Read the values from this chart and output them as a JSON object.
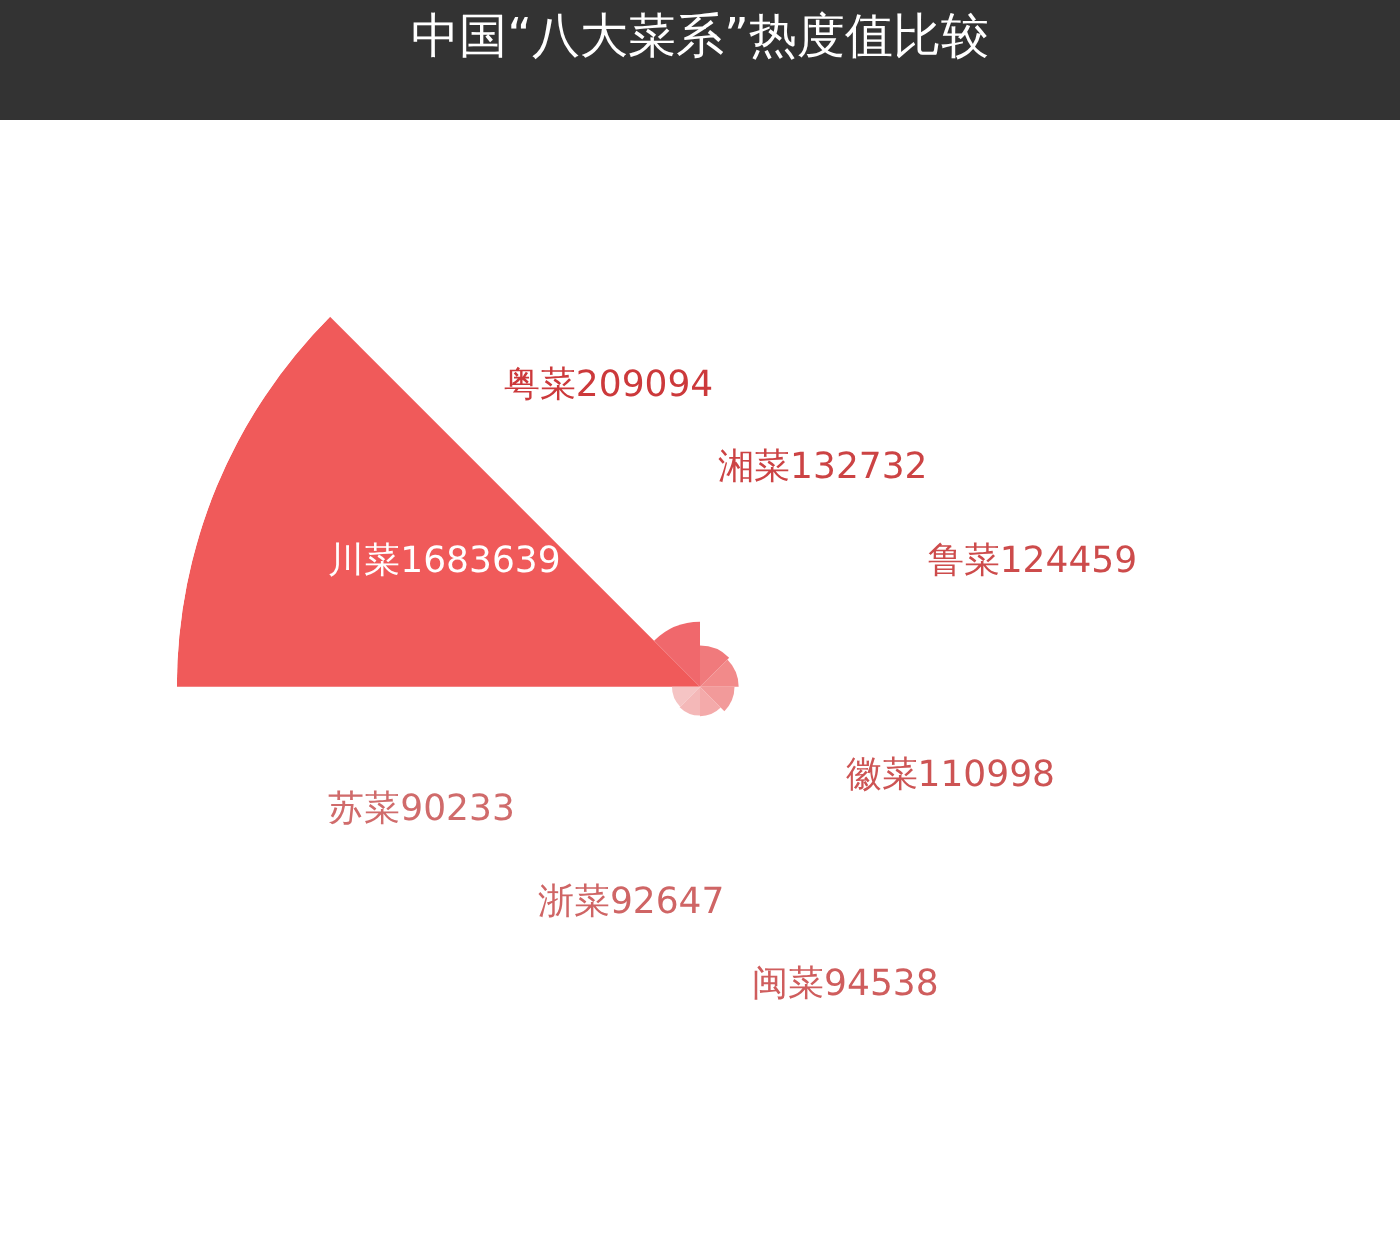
{
  "chart_data": {
    "type": "other",
    "title": "中国“八大菜系”热度值比较",
    "categories": [
      "川菜",
      "粤菜",
      "湘菜",
      "鲁菜",
      "徽菜",
      "闽菜",
      "浙菜",
      "苏菜"
    ],
    "values": [
      1683639,
      209094,
      132732,
      124459,
      110998,
      94538,
      92647,
      90233
    ],
    "value_labels": [
      "1683639",
      "209094",
      "132732",
      "124459",
      "110998",
      "94538",
      "92647",
      "90233"
    ],
    "colors": [
      "#f05a5a",
      "#f0686c",
      "#f07a7c",
      "#f28a8a",
      "#f29a9a",
      "#f4aaaa",
      "#f4b8b8",
      "#f5c4c4"
    ]
  }
}
